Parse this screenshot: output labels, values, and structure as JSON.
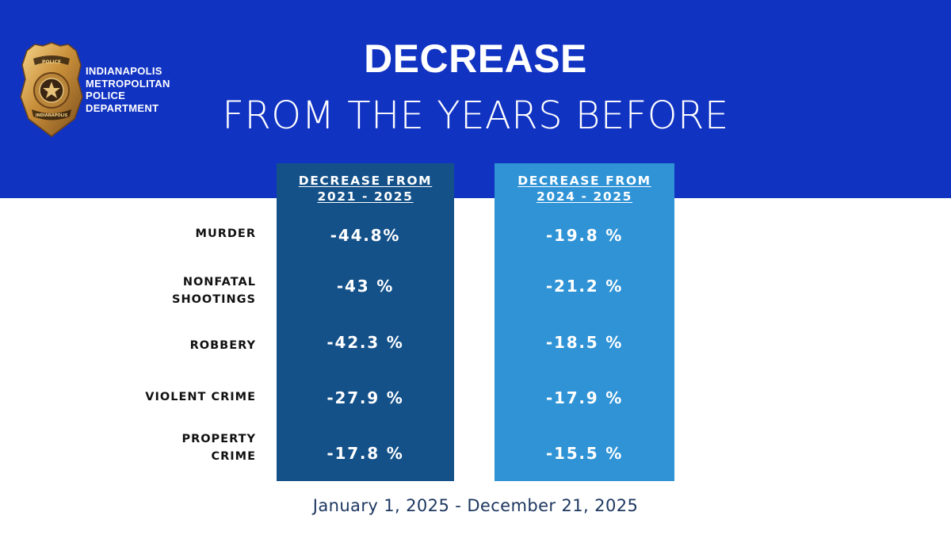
{
  "header": {
    "title": "DECREASE",
    "subtitle": "FROM THE YEARS BEFORE",
    "background_color": "#1133c2"
  },
  "logo": {
    "icon": "police-badge-icon",
    "department_lines": [
      "INDIANAPOLIS",
      "METROPOLITAN",
      "POLICE",
      "DEPARTMENT"
    ],
    "badge_text": [
      "POLICE",
      "INDIANAPOLIS"
    ]
  },
  "columns": [
    {
      "header_lines": [
        "DECREASE FROM",
        "2021 - 2025"
      ],
      "color": "#145189"
    },
    {
      "header_lines": [
        "DECREASE FROM",
        "2024 - 2025"
      ],
      "color": "#2f93d6"
    }
  ],
  "rows": [
    {
      "label_lines": [
        "MURDER"
      ],
      "values": [
        "-44.8%",
        "-19.8 %"
      ]
    },
    {
      "label_lines": [
        "NONFATAL",
        "SHOOTINGS"
      ],
      "values": [
        "-43 %",
        "-21.2 %"
      ]
    },
    {
      "label_lines": [
        "ROBBERY"
      ],
      "values": [
        "-42.3 %",
        "-18.5 %"
      ]
    },
    {
      "label_lines": [
        "VIOLENT CRIME"
      ],
      "values": [
        "-27.9 %",
        "-17.9 %"
      ]
    },
    {
      "label_lines": [
        "PROPERTY",
        "CRIME"
      ],
      "values": [
        "-17.8 %",
        "-15.5 %"
      ]
    }
  ],
  "footer": {
    "date_range": "January 1, 2025 - December 21, 2025"
  }
}
